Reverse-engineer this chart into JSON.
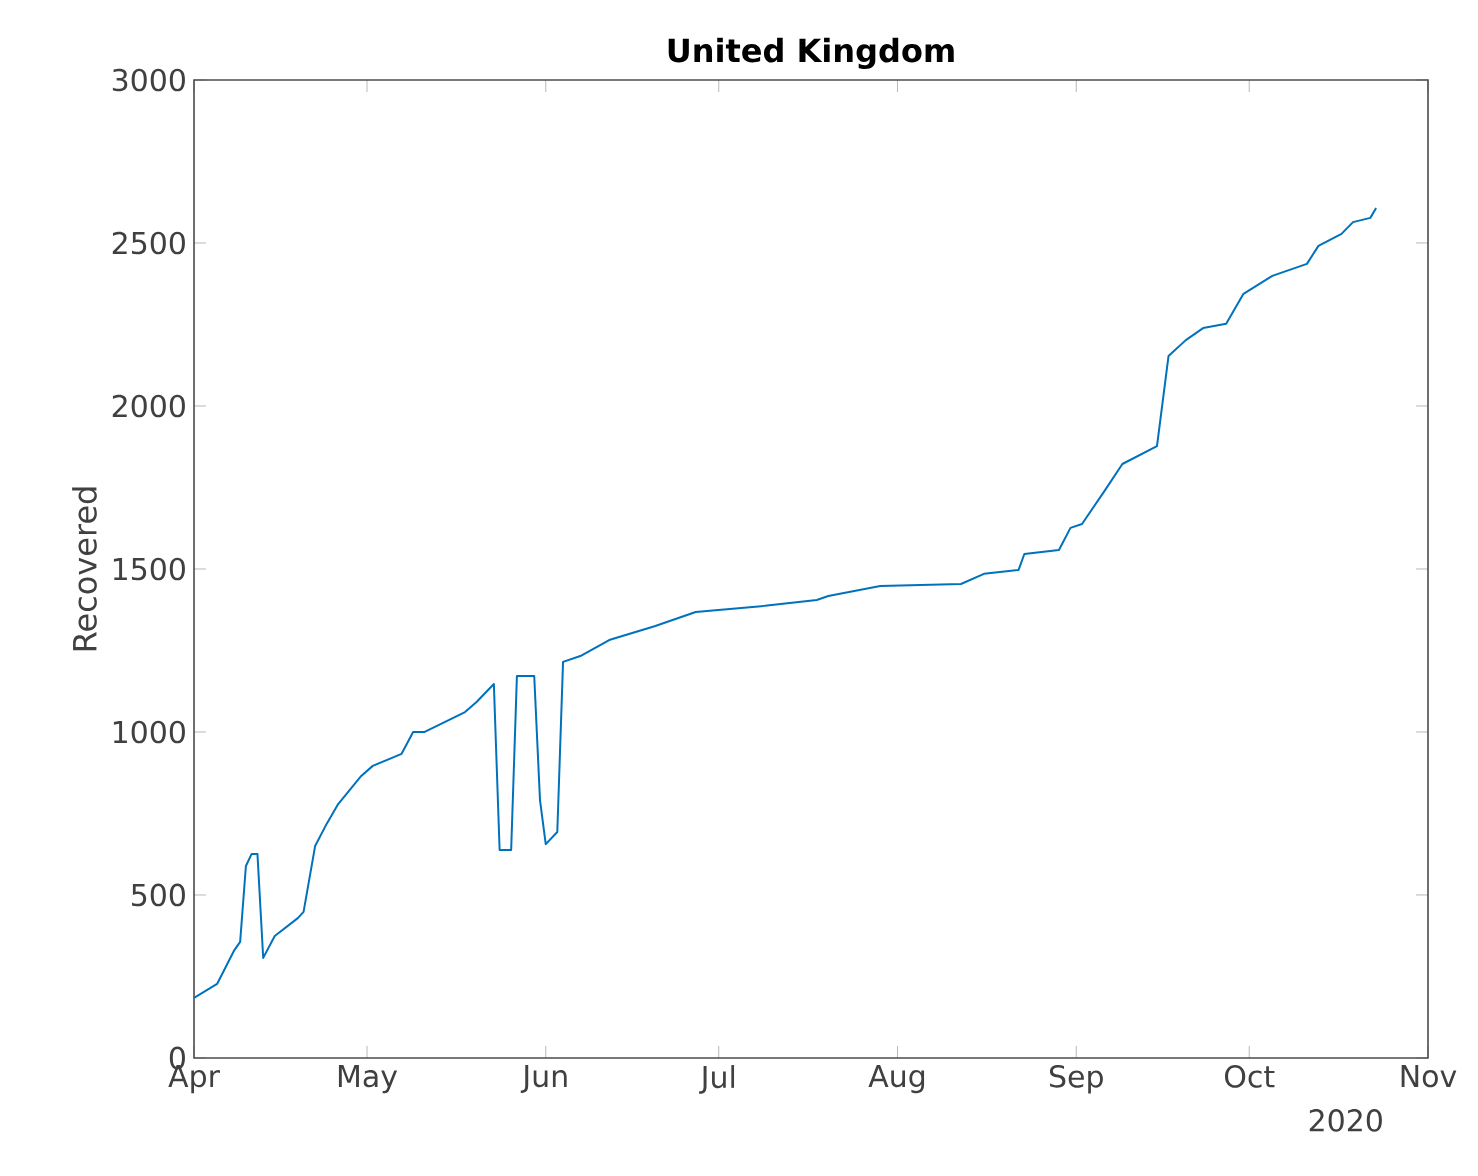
{
  "chart_data": {
    "type": "line",
    "title": "United Kingdom",
    "ylabel": "Recovered",
    "x": [
      "2020-04-01",
      "2020-04-05",
      "2020-04-08",
      "2020-04-09",
      "2020-04-10",
      "2020-04-11",
      "2020-04-12",
      "2020-04-13",
      "2020-04-15",
      "2020-04-19",
      "2020-04-20",
      "2020-04-22",
      "2020-04-24",
      "2020-04-26",
      "2020-04-30",
      "2020-05-02",
      "2020-05-07",
      "2020-05-09",
      "2020-05-11",
      "2020-05-18",
      "2020-05-20",
      "2020-05-23",
      "2020-05-24",
      "2020-05-26",
      "2020-05-27",
      "2020-05-30",
      "2020-05-31",
      "2020-06-01",
      "2020-06-03",
      "2020-06-04",
      "2020-06-07",
      "2020-06-12",
      "2020-06-20",
      "2020-06-27",
      "2020-07-09",
      "2020-07-18",
      "2020-07-20",
      "2020-07-29",
      "2020-08-12",
      "2020-08-16",
      "2020-08-22",
      "2020-08-23",
      "2020-08-29",
      "2020-08-31",
      "2020-09-02",
      "2020-09-06",
      "2020-09-09",
      "2020-09-15",
      "2020-09-17",
      "2020-09-20",
      "2020-09-23",
      "2020-09-27",
      "2020-09-30",
      "2020-10-05",
      "2020-10-11",
      "2020-10-13",
      "2020-10-17",
      "2020-10-19",
      "2020-10-22",
      "2020-10-23"
    ],
    "series": [
      {
        "color": "#0072bd",
        "values": [
          184,
          227,
          331,
          356,
          589,
          626,
          626,
          307,
          374,
          429,
          448,
          650,
          718,
          779,
          865,
          896,
          933,
          1000,
          1000,
          1061,
          1092,
          1147,
          638,
          638,
          1172,
          1172,
          791,
          656,
          693,
          1215,
          1233,
          1282,
          1325,
          1368,
          1387,
          1405,
          1417,
          1448,
          1454,
          1485,
          1497,
          1546,
          1558,
          1626,
          1638,
          1742,
          1822,
          1877,
          2153,
          2202,
          2239,
          2252,
          2344,
          2399,
          2436,
          2491,
          2528,
          2564,
          2577,
          2607
        ]
      }
    ],
    "xlim": [
      "2020-04-01",
      "2020-11-01"
    ],
    "xticks": [
      {
        "value": "2020-04-01",
        "label": "Apr"
      },
      {
        "value": "2020-05-01",
        "label": "May"
      },
      {
        "value": "2020-06-01",
        "label": "Jun"
      },
      {
        "value": "2020-07-01",
        "label": "Jul"
      },
      {
        "value": "2020-08-01",
        "label": "Aug"
      },
      {
        "value": "2020-09-01",
        "label": "Sep"
      },
      {
        "value": "2020-10-01",
        "label": "Oct"
      },
      {
        "value": "2020-11-01",
        "label": "Nov"
      }
    ],
    "ylim": [
      0,
      3000
    ],
    "yticks": [
      0,
      500,
      1000,
      1500,
      2000,
      2500,
      3000
    ],
    "annotations": [
      "2020"
    ],
    "grid": false
  }
}
